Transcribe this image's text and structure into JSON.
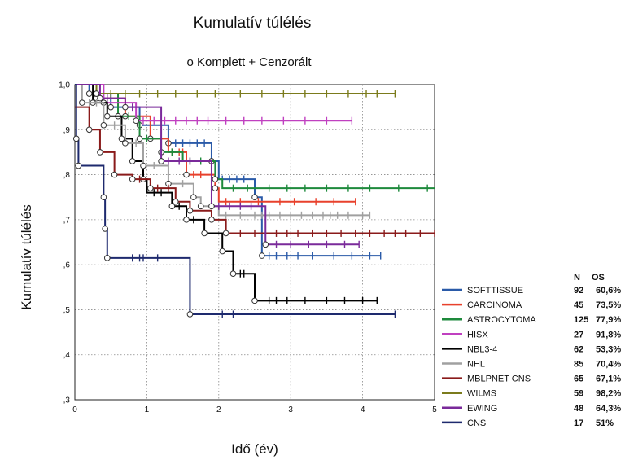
{
  "chart_data": {
    "type": "line",
    "step": true,
    "title": "Kumulatív túlélés",
    "subtitle": "o Komplett   + Cenzorált",
    "xlabel": "Idő (év)",
    "ylabel": "Kumulatív túlélés",
    "xlim": [
      0,
      5
    ],
    "ylim": [
      0.3,
      1.0
    ],
    "x_ticks": [
      0,
      1,
      2,
      3,
      4,
      5
    ],
    "x_tick_labels": [
      "0",
      "1",
      "2",
      "3",
      "4",
      "5"
    ],
    "y_ticks": [
      0.3,
      0.4,
      0.5,
      0.6,
      0.7,
      0.8,
      0.9,
      1.0
    ],
    "y_tick_labels": [
      ",3",
      ",4",
      ",5",
      ",6",
      ",7",
      ",8",
      ",9",
      "1,0"
    ],
    "grid": "dotted",
    "legend_position": "right",
    "legend_header": {
      "n": "N",
      "os": "OS"
    },
    "series": [
      {
        "name": "SOFTTISSUE",
        "color": "#2a5aa8",
        "n": "92",
        "os": "60,6%",
        "steps": [
          [
            0,
            1.0
          ],
          [
            0.2,
            0.98
          ],
          [
            0.5,
            0.95
          ],
          [
            0.9,
            0.91
          ],
          [
            1.3,
            0.87
          ],
          [
            1.9,
            0.83
          ],
          [
            2.0,
            0.79
          ],
          [
            2.5,
            0.75
          ],
          [
            2.6,
            0.62
          ],
          [
            4.25,
            0.62
          ]
        ],
        "events": [
          [
            0.2,
            0.98
          ],
          [
            0.5,
            0.95
          ],
          [
            0.9,
            0.91
          ],
          [
            1.3,
            0.87
          ],
          [
            1.9,
            0.83
          ],
          [
            2.5,
            0.75
          ],
          [
            2.6,
            0.62
          ]
        ],
        "censored": [
          1.4,
          1.5,
          1.6,
          1.7,
          1.8,
          2.05,
          2.15,
          2.25,
          2.35,
          2.7,
          2.8,
          2.95,
          3.1,
          3.3,
          3.6,
          3.85,
          4.1,
          4.25
        ]
      },
      {
        "name": "CARCINOMA",
        "color": "#e8412c",
        "n": "45",
        "os": "73,5%",
        "steps": [
          [
            0,
            1.0
          ],
          [
            0.3,
            0.97
          ],
          [
            0.7,
            0.93
          ],
          [
            1.05,
            0.88
          ],
          [
            1.3,
            0.85
          ],
          [
            1.55,
            0.8
          ],
          [
            1.95,
            0.77
          ],
          [
            2.0,
            0.74
          ],
          [
            3.9,
            0.74
          ]
        ],
        "events": [
          [
            0.3,
            0.97
          ],
          [
            0.7,
            0.93
          ],
          [
            1.05,
            0.88
          ],
          [
            1.55,
            0.8
          ],
          [
            1.95,
            0.77
          ]
        ],
        "censored": [
          1.35,
          1.45,
          1.5,
          1.65,
          1.75,
          2.1,
          2.3,
          2.55,
          2.85,
          3.05,
          3.35,
          3.6,
          3.9
        ]
      },
      {
        "name": "ASTROCYTOMA",
        "color": "#1e8a3c",
        "n": "125",
        "os": "77,9%",
        "steps": [
          [
            0,
            1.0
          ],
          [
            0.3,
            0.98
          ],
          [
            0.6,
            0.93
          ],
          [
            0.9,
            0.88
          ],
          [
            1.2,
            0.85
          ],
          [
            1.5,
            0.83
          ],
          [
            1.95,
            0.79
          ],
          [
            2.05,
            0.77
          ],
          [
            5.0,
            0.77
          ]
        ],
        "events": [
          [
            0.3,
            0.98
          ],
          [
            0.6,
            0.93
          ],
          [
            0.9,
            0.88
          ],
          [
            1.2,
            0.85
          ],
          [
            1.95,
            0.79
          ]
        ],
        "censored": [
          0.4,
          0.5,
          0.75,
          1.0,
          1.35,
          1.6,
          1.75,
          2.2,
          2.4,
          2.7,
          2.95,
          3.2,
          3.5,
          3.8,
          4.1,
          4.5,
          4.9
        ]
      },
      {
        "name": "HISX",
        "color": "#c040c0",
        "n": "27",
        "os": "91,8%",
        "steps": [
          [
            0,
            1.0
          ],
          [
            0.4,
            0.96
          ],
          [
            0.85,
            0.92
          ],
          [
            3.85,
            0.92
          ]
        ],
        "events": [
          [
            0.4,
            0.96
          ],
          [
            0.85,
            0.92
          ]
        ],
        "censored": [
          0.95,
          1.1,
          1.25,
          1.4,
          1.55,
          1.7,
          1.85,
          2.1,
          2.35,
          2.6,
          2.9,
          3.2,
          3.5,
          3.85
        ]
      },
      {
        "name": "NBL3-4",
        "color": "#000000",
        "n": "62",
        "os": "53,3%",
        "steps": [
          [
            0,
            1.0
          ],
          [
            0.25,
            0.96
          ],
          [
            0.45,
            0.93
          ],
          [
            0.65,
            0.88
          ],
          [
            0.8,
            0.83
          ],
          [
            0.95,
            0.79
          ],
          [
            1.0,
            0.76
          ],
          [
            1.35,
            0.73
          ],
          [
            1.55,
            0.7
          ],
          [
            1.8,
            0.67
          ],
          [
            2.05,
            0.63
          ],
          [
            2.2,
            0.58
          ],
          [
            2.5,
            0.52
          ],
          [
            4.2,
            0.52
          ]
        ],
        "events": [
          [
            0.25,
            0.96
          ],
          [
            0.45,
            0.93
          ],
          [
            0.65,
            0.88
          ],
          [
            0.8,
            0.83
          ],
          [
            0.95,
            0.79
          ],
          [
            1.35,
            0.73
          ],
          [
            1.55,
            0.7
          ],
          [
            1.8,
            0.67
          ],
          [
            2.05,
            0.63
          ],
          [
            2.2,
            0.58
          ],
          [
            2.5,
            0.52
          ]
        ],
        "censored": [
          1.1,
          1.2,
          1.45,
          1.65,
          2.3,
          2.35,
          2.7,
          2.8,
          2.95,
          3.2,
          3.5,
          3.75,
          4.0,
          4.2
        ]
      },
      {
        "name": "NHL",
        "color": "#a0a0a0",
        "n": "85",
        "os": "70,4%",
        "steps": [
          [
            0,
            1.0
          ],
          [
            0.1,
            0.96
          ],
          [
            0.4,
            0.91
          ],
          [
            0.7,
            0.87
          ],
          [
            0.95,
            0.82
          ],
          [
            1.3,
            0.78
          ],
          [
            1.65,
            0.75
          ],
          [
            1.75,
            0.73
          ],
          [
            2.0,
            0.71
          ],
          [
            4.1,
            0.71
          ]
        ],
        "events": [
          [
            0.1,
            0.96
          ],
          [
            0.4,
            0.91
          ],
          [
            0.7,
            0.87
          ],
          [
            0.95,
            0.82
          ],
          [
            1.3,
            0.78
          ],
          [
            1.65,
            0.75
          ],
          [
            1.75,
            0.73
          ]
        ],
        "censored": [
          0.2,
          0.3,
          0.55,
          0.85,
          1.1,
          1.5,
          2.1,
          2.3,
          2.5,
          2.6,
          2.7,
          2.85,
          3.0,
          3.15,
          3.3,
          3.45,
          3.55,
          3.65,
          3.8,
          4.0,
          4.1
        ]
      },
      {
        "name": "MBLPNET CNS",
        "color": "#8a1a1a",
        "n": "65",
        "os": "67,1%",
        "steps": [
          [
            0,
            0.95
          ],
          [
            0.2,
            0.9
          ],
          [
            0.35,
            0.85
          ],
          [
            0.55,
            0.8
          ],
          [
            0.8,
            0.79
          ],
          [
            1.05,
            0.77
          ],
          [
            1.4,
            0.74
          ],
          [
            1.6,
            0.72
          ],
          [
            1.9,
            0.7
          ],
          [
            2.1,
            0.67
          ],
          [
            5.0,
            0.67
          ]
        ],
        "events": [
          [
            0.2,
            0.9
          ],
          [
            0.35,
            0.85
          ],
          [
            0.55,
            0.8
          ],
          [
            0.8,
            0.79
          ],
          [
            1.05,
            0.77
          ],
          [
            1.4,
            0.74
          ],
          [
            1.6,
            0.72
          ],
          [
            1.9,
            0.7
          ],
          [
            2.1,
            0.67
          ]
        ],
        "censored": [
          0.9,
          1.15,
          1.3,
          2.3,
          2.5,
          2.65,
          2.8,
          2.95,
          3.1,
          3.3,
          3.5,
          3.7,
          3.9,
          4.1,
          4.3,
          4.45,
          4.6,
          4.8,
          5.0
        ]
      },
      {
        "name": "WILMS",
        "color": "#7b7b1c",
        "n": "59",
        "os": "98,2%",
        "steps": [
          [
            0,
            1.0
          ],
          [
            0.3,
            0.98
          ],
          [
            4.45,
            0.98
          ]
        ],
        "events": [
          [
            0.3,
            0.98
          ]
        ],
        "censored": [
          0.5,
          0.7,
          0.9,
          1.15,
          1.4,
          1.7,
          1.95,
          2.3,
          2.6,
          2.9,
          3.2,
          3.5,
          3.8,
          4.05,
          4.2,
          4.45
        ]
      },
      {
        "name": "EWING",
        "color": "#7a2a9a",
        "n": "48",
        "os": "64,3%",
        "steps": [
          [
            0,
            1.0
          ],
          [
            0.35,
            0.97
          ],
          [
            0.7,
            0.95
          ],
          [
            1.2,
            0.83
          ],
          [
            1.9,
            0.73
          ],
          [
            2.65,
            0.645
          ],
          [
            3.95,
            0.645
          ]
        ],
        "events": [
          [
            0.35,
            0.97
          ],
          [
            0.7,
            0.95
          ],
          [
            1.2,
            0.83
          ],
          [
            1.9,
            0.73
          ],
          [
            2.65,
            0.645
          ]
        ],
        "censored": [
          0.45,
          0.8,
          1.3,
          1.45,
          1.6,
          2.0,
          2.15,
          2.3,
          2.45,
          2.8,
          3.0,
          3.25,
          3.5,
          3.75,
          3.95
        ]
      },
      {
        "name": "CNS",
        "color": "#1e2a6e",
        "n": "17",
        "os": "51%",
        "steps": [
          [
            0,
            1.0
          ],
          [
            0.02,
            0.88
          ],
          [
            0.05,
            0.82
          ],
          [
            0.4,
            0.75
          ],
          [
            0.42,
            0.68
          ],
          [
            0.45,
            0.615
          ],
          [
            1.6,
            0.49
          ],
          [
            4.45,
            0.49
          ]
        ],
        "events": [
          [
            0.02,
            0.88
          ],
          [
            0.05,
            0.82
          ],
          [
            0.4,
            0.75
          ],
          [
            0.42,
            0.68
          ],
          [
            0.45,
            0.615
          ],
          [
            1.6,
            0.49
          ]
        ],
        "censored": [
          0.8,
          0.9,
          0.95,
          1.15,
          2.05,
          2.2,
          4.45
        ]
      }
    ]
  }
}
